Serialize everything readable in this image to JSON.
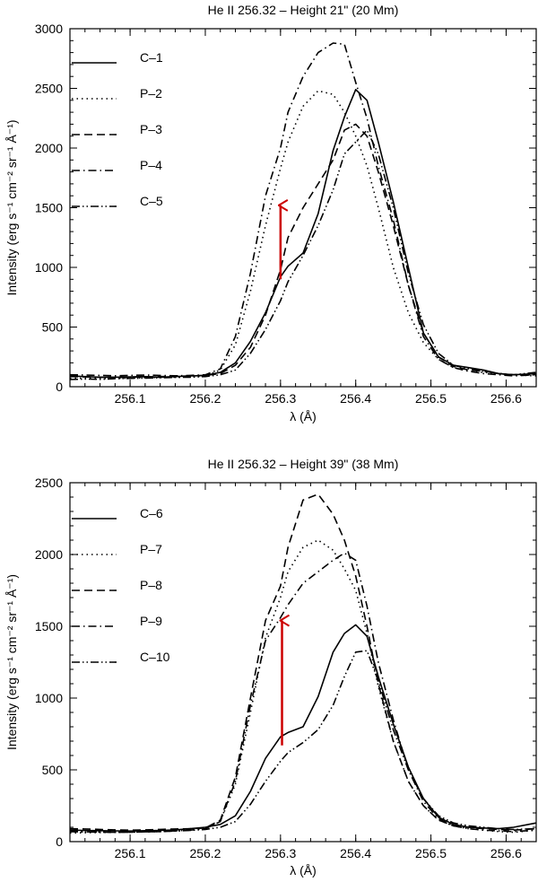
{
  "chart_data": [
    {
      "type": "line",
      "title": "He II 256.32 – Height 21\" (20 Mm)",
      "xlabel": "λ (Å)",
      "ylabel": "Intensity (erg s⁻¹ cm⁻² sr⁻¹ Å⁻¹)",
      "xlim": [
        256.02,
        256.64
      ],
      "ylim": [
        0,
        3000
      ],
      "xticks": [
        "256.1",
        "256.2",
        "256.3",
        "256.4",
        "256.5",
        "256.6"
      ],
      "xtick_values": [
        256.1,
        256.2,
        256.3,
        256.4,
        256.5,
        256.6
      ],
      "yticks": [
        "0",
        "500",
        "1000",
        "1500",
        "2000",
        "2500",
        "3000"
      ],
      "ytick_values": [
        0,
        500,
        1000,
        1500,
        2000,
        2500,
        3000
      ],
      "legend_position": "top-left",
      "x": [
        256.02,
        256.04,
        256.06,
        256.08,
        256.1,
        256.12,
        256.14,
        256.16,
        256.18,
        256.2,
        256.22,
        256.24,
        256.26,
        256.28,
        256.3,
        256.31,
        256.33,
        256.35,
        256.37,
        256.385,
        256.4,
        256.415,
        256.43,
        256.45,
        256.47,
        256.49,
        256.51,
        256.53,
        256.55,
        256.57,
        256.59,
        256.61,
        256.64
      ],
      "series": [
        {
          "name": "C–1",
          "dash": "solid",
          "values": [
            90,
            85,
            80,
            80,
            82,
            85,
            80,
            85,
            90,
            95,
            120,
            200,
            380,
            620,
            920,
            1010,
            1120,
            1450,
            1980,
            2260,
            2490,
            2400,
            2050,
            1550,
            1000,
            450,
            250,
            180,
            160,
            140,
            110,
            100,
            110
          ]
        },
        {
          "name": "P–2",
          "dash": "dotted",
          "values": [
            70,
            72,
            68,
            70,
            72,
            75,
            78,
            80,
            82,
            90,
            140,
            350,
            800,
            1350,
            1830,
            2050,
            2350,
            2480,
            2450,
            2300,
            2100,
            1850,
            1500,
            1000,
            620,
            370,
            230,
            160,
            130,
            120,
            110,
            100,
            90
          ]
        },
        {
          "name": "P–3",
          "dash": "dashed",
          "values": [
            85,
            82,
            80,
            78,
            80,
            82,
            85,
            88,
            90,
            95,
            110,
            180,
            330,
            600,
            980,
            1250,
            1500,
            1700,
            1900,
            2150,
            2200,
            2100,
            1800,
            1350,
            850,
            450,
            250,
            170,
            140,
            130,
            110,
            100,
            100
          ]
        },
        {
          "name": "P–4",
          "dash": "dashdot",
          "values": [
            100,
            98,
            95,
            92,
            95,
            98,
            95,
            92,
            95,
            100,
            150,
            420,
            950,
            1600,
            2000,
            2300,
            2600,
            2800,
            2880,
            2870,
            2550,
            2250,
            1850,
            1400,
            850,
            420,
            230,
            160,
            130,
            110,
            100,
            90,
            100
          ]
        },
        {
          "name": "C–5",
          "dash": "dashdotdot",
          "values": [
            60,
            65,
            62,
            68,
            70,
            72,
            75,
            78,
            80,
            85,
            100,
            140,
            280,
            480,
            720,
            880,
            1100,
            1350,
            1650,
            1950,
            2050,
            2150,
            1950,
            1500,
            950,
            520,
            280,
            180,
            150,
            130,
            110,
            100,
            120
          ]
        }
      ],
      "annotation": {
        "type": "arrow",
        "x": 256.3,
        "y_from": 900,
        "y_to": 1520,
        "color": "#cc0000"
      }
    },
    {
      "type": "line",
      "title": "He II 256.32 – Height 39\" (38 Mm)",
      "xlabel": "λ (Å)",
      "ylabel": "Intensity (erg s⁻¹ cm⁻² sr⁻¹ Å⁻¹)",
      "xlim": [
        256.02,
        256.64
      ],
      "ylim": [
        0,
        2500
      ],
      "xticks": [
        "256.1",
        "256.2",
        "256.3",
        "256.4",
        "256.5",
        "256.6"
      ],
      "xtick_values": [
        256.1,
        256.2,
        256.3,
        256.4,
        256.5,
        256.6
      ],
      "yticks": [
        "0",
        "500",
        "1000",
        "1500",
        "2000",
        "2500"
      ],
      "ytick_values": [
        0,
        500,
        1000,
        1500,
        2000,
        2500
      ],
      "legend_position": "top-left",
      "x": [
        256.02,
        256.04,
        256.06,
        256.08,
        256.1,
        256.12,
        256.14,
        256.16,
        256.18,
        256.2,
        256.22,
        256.24,
        256.26,
        256.28,
        256.3,
        256.31,
        256.33,
        256.35,
        256.37,
        256.385,
        256.4,
        256.415,
        256.43,
        256.45,
        256.47,
        256.49,
        256.51,
        256.53,
        256.55,
        256.57,
        256.59,
        256.61,
        256.64
      ],
      "series": [
        {
          "name": "C–6",
          "dash": "solid",
          "values": [
            80,
            78,
            76,
            75,
            74,
            76,
            78,
            82,
            90,
            100,
            120,
            180,
            350,
            580,
            730,
            760,
            800,
            1010,
            1320,
            1450,
            1510,
            1430,
            1150,
            820,
            520,
            300,
            170,
            120,
            100,
            95,
            90,
            100,
            130
          ]
        },
        {
          "name": "P–7",
          "dash": "dotted",
          "values": [
            60,
            62,
            64,
            65,
            66,
            68,
            70,
            75,
            80,
            90,
            140,
            400,
            900,
            1420,
            1700,
            1880,
            2050,
            2100,
            2030,
            1900,
            1750,
            1450,
            1080,
            700,
            420,
            250,
            150,
            110,
            90,
            80,
            70,
            65,
            80
          ]
        },
        {
          "name": "P–8",
          "dash": "dashed",
          "values": [
            90,
            88,
            85,
            82,
            80,
            82,
            85,
            88,
            90,
            95,
            150,
            450,
            1000,
            1540,
            1780,
            2050,
            2380,
            2420,
            2280,
            2100,
            1850,
            1500,
            1100,
            700,
            420,
            250,
            150,
            110,
            100,
            90,
            85,
            80,
            90
          ]
        },
        {
          "name": "P–9",
          "dash": "dashdot",
          "values": [
            70,
            68,
            66,
            65,
            66,
            68,
            70,
            75,
            80,
            90,
            140,
            420,
            950,
            1400,
            1560,
            1650,
            1800,
            1880,
            1960,
            2010,
            1960,
            1640,
            1250,
            850,
            500,
            280,
            160,
            110,
            90,
            80,
            75,
            70,
            80
          ]
        },
        {
          "name": "C–10",
          "dash": "dashdotdot",
          "values": [
            70,
            68,
            66,
            65,
            66,
            68,
            70,
            74,
            78,
            85,
            100,
            140,
            260,
            420,
            560,
            620,
            690,
            780,
            950,
            1150,
            1320,
            1330,
            1120,
            780,
            500,
            300,
            180,
            130,
            110,
            100,
            90,
            85,
            90
          ]
        }
      ],
      "annotation": {
        "type": "arrow",
        "x": 256.302,
        "y_from": 670,
        "y_to": 1540,
        "color": "#cc0000"
      }
    }
  ]
}
